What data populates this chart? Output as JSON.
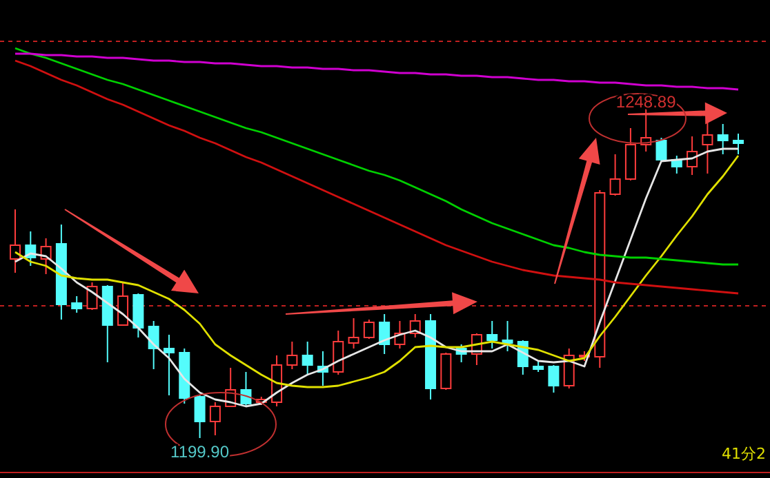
{
  "chart_data": {
    "type": "candlestick",
    "categories": [
      null,
      null,
      null,
      null,
      null,
      null,
      null,
      null,
      null,
      null,
      null,
      null,
      null,
      null,
      null,
      null,
      null,
      null,
      null,
      null,
      null,
      null,
      null,
      null,
      null,
      null,
      null,
      null,
      null,
      null,
      null,
      null,
      null,
      null,
      null,
      null,
      null,
      null,
      null,
      null,
      null,
      null,
      null,
      null,
      null,
      null,
      null,
      null
    ],
    "ohlc": [
      [
        1225.9,
        1233.1,
        1223.9,
        1227.9
      ],
      [
        1227.9,
        1229.9,
        1224.9,
        1226.1
      ],
      [
        1225.9,
        1228.9,
        1223.7,
        1227.7
      ],
      [
        1228.1,
        1230.9,
        1217.1,
        1219.3
      ],
      [
        1219.5,
        1220.5,
        1218.1,
        1218.7
      ],
      [
        1218.7,
        1222.5,
        1218.5,
        1221.9
      ],
      [
        1221.9,
        1222.1,
        1210.9,
        1216.3
      ],
      [
        1216.3,
        1222.5,
        1216.3,
        1220.5
      ],
      [
        1220.7,
        1220.9,
        1214.5,
        1215.9
      ],
      [
        1216.1,
        1216.9,
        1209.9,
        1212.9
      ],
      [
        1212.9,
        1214.9,
        1206.1,
        1212.3
      ],
      [
        1212.3,
        1212.9,
        1204.9,
        1205.7
      ],
      [
        1205.9,
        1206.1,
        1199.9,
        1202.3
      ],
      [
        1202.3,
        1205.1,
        1200.3,
        1204.5
      ],
      [
        1204.5,
        1210.1,
        1204.5,
        1206.9
      ],
      [
        1206.9,
        1209.5,
        1204.5,
        1204.9
      ],
      [
        1205.1,
        1205.9,
        1204.7,
        1205.5
      ],
      [
        1205.1,
        1211.9,
        1204.5,
        1210.5
      ],
      [
        1210.5,
        1213.9,
        1209.9,
        1211.9
      ],
      [
        1211.9,
        1213.9,
        1209.1,
        1210.5
      ],
      [
        1210.3,
        1212.5,
        1207.5,
        1209.5
      ],
      [
        1209.5,
        1215.5,
        1209.1,
        1213.9
      ],
      [
        1213.7,
        1217.3,
        1212.9,
        1214.5
      ],
      [
        1214.5,
        1217.1,
        1214.3,
        1216.7
      ],
      [
        1216.7,
        1217.9,
        1212.1,
        1213.5
      ],
      [
        1213.5,
        1216.9,
        1212.9,
        1215.1
      ],
      [
        1215.1,
        1217.9,
        1214.5,
        1216.9
      ],
      [
        1216.9,
        1217.9,
        1205.5,
        1207.1
      ],
      [
        1207.1,
        1212.3,
        1206.9,
        1212.1
      ],
      [
        1212.9,
        1213.5,
        1210.9,
        1212.1
      ],
      [
        1212.1,
        1215.1,
        1210.5,
        1214.9
      ],
      [
        1214.9,
        1216.9,
        1212.9,
        1214.1
      ],
      [
        1214.1,
        1216.9,
        1212.5,
        1213.7
      ],
      [
        1213.9,
        1214.1,
        1209.1,
        1210.3
      ],
      [
        1210.3,
        1211.1,
        1209.5,
        1209.9
      ],
      [
        1210.3,
        1210.5,
        1206.5,
        1207.5
      ],
      [
        1207.5,
        1212.9,
        1207.1,
        1211.9
      ],
      [
        1211.7,
        1212.5,
        1211.1,
        1211.9
      ],
      [
        1211.7,
        1235.9,
        1210.1,
        1235.5
      ],
      [
        1235.3,
        1241.1,
        1235.1,
        1237.5
      ],
      [
        1237.5,
        1244.9,
        1237.3,
        1242.5
      ],
      [
        1242.5,
        1248.89,
        1241.5,
        1243.5
      ],
      [
        1243.1,
        1243.5,
        1240.1,
        1240.3
      ],
      [
        1240.3,
        1240.9,
        1238.3,
        1239.3
      ],
      [
        1239.3,
        1243.7,
        1238.1,
        1241.5
      ],
      [
        1242.5,
        1245.7,
        1238.3,
        1243.9
      ],
      [
        1243.9,
        1245.5,
        1241.1,
        1243.1
      ],
      [
        1243.1,
        1244.1,
        1241.1,
        1242.7
      ]
    ],
    "colors": [
      "#ff3c3c",
      "#54fcfc",
      "#ff3c3c",
      "#54fcfc",
      "#54fcfc",
      "#ff3c3c",
      "#54fcfc",
      "#ff3c3c",
      "#54fcfc",
      "#54fcfc",
      "#54fcfc",
      "#54fcfc",
      "#54fcfc",
      "#ff3c3c",
      "#ff3c3c",
      "#54fcfc",
      "#ff3c3c",
      "#ff3c3c",
      "#ff3c3c",
      "#54fcfc",
      "#54fcfc",
      "#ff3c3c",
      "#ff3c3c",
      "#ff3c3c",
      "#54fcfc",
      "#ff3c3c",
      "#ff3c3c",
      "#54fcfc",
      "#ff3c3c",
      "#54fcfc",
      "#ff3c3c",
      "#54fcfc",
      "#54fcfc",
      "#54fcfc",
      "#54fcfc",
      "#54fcfc",
      "#ff3c3c",
      "#ff3c3c",
      "#ff3c3c",
      "#ff3c3c",
      "#ff3c3c",
      "#ff3c3c",
      "#54fcfc",
      "#54fcfc",
      "#ff3c3c",
      "#ff3c3c",
      "#54fcfc",
      "#54fcfc"
    ],
    "series": [
      {
        "type": "line",
        "color": "#e6e6e6",
        "values": [
          1225.5,
          1226.7,
          1226.3,
          1224.5,
          1222.5,
          1221.1,
          1219.5,
          1217.9,
          1215.9,
          1213.5,
          1211.5,
          1208.5,
          1206.5,
          1205.5,
          1205.1,
          1204.5,
          1204.9,
          1206.5,
          1207.9,
          1209.1,
          1209.9,
          1211.1,
          1212.1,
          1213.1,
          1214.1,
          1214.9,
          1215.5,
          1214.5,
          1213.1,
          1212.5,
          1212.5,
          1212.5,
          1213.5,
          1212.3,
          1211.1,
          1210.9,
          1211.1,
          1210.3,
          1216.7,
          1222.7,
          1228.7,
          1234.7,
          1240.1,
          1240.3,
          1240.5,
          1241.5,
          1241.9,
          1241.9
        ]
      },
      {
        "type": "line",
        "color": "#e0e000",
        "values": [
          1226.9,
          1225.5,
          1224.9,
          1223.5,
          1223.1,
          1222.9,
          1222.9,
          1222.5,
          1222.1,
          1221.1,
          1220.1,
          1218.5,
          1216.5,
          1213.5,
          1211.9,
          1210.5,
          1209.1,
          1207.9,
          1207.5,
          1207.3,
          1207.3,
          1207.5,
          1208.1,
          1208.7,
          1209.5,
          1211.1,
          1213.1,
          1213.3,
          1213.1,
          1213.1,
          1213.5,
          1213.9,
          1213.5,
          1213.1,
          1212.7,
          1211.9,
          1211.1,
          1211.5,
          1214.7,
          1217.5,
          1220.5,
          1223.5,
          1226.3,
          1229.3,
          1232.1,
          1235.3,
          1237.9,
          1240.9
        ]
      },
      {
        "type": "line",
        "color": "#00d000",
        "values": [
          1256.5,
          1255.7,
          1255.1,
          1254.3,
          1253.5,
          1252.7,
          1251.9,
          1251.3,
          1250.5,
          1249.7,
          1248.9,
          1248.1,
          1247.3,
          1246.5,
          1245.7,
          1244.9,
          1244.3,
          1243.5,
          1242.7,
          1241.9,
          1241.1,
          1240.3,
          1239.5,
          1238.7,
          1238.1,
          1237.3,
          1236.3,
          1235.3,
          1234.3,
          1233.1,
          1232.1,
          1231.1,
          1230.3,
          1229.5,
          1228.7,
          1227.9,
          1227.5,
          1226.9,
          1226.5,
          1226.3,
          1226.1,
          1226.1,
          1225.9,
          1225.7,
          1225.5,
          1225.3,
          1225.1,
          1225.1
        ]
      },
      {
        "type": "line",
        "color": "#d01010",
        "values": [
          1254.7,
          1253.9,
          1252.9,
          1251.9,
          1251.1,
          1250.1,
          1249.1,
          1248.3,
          1247.3,
          1246.3,
          1245.3,
          1244.5,
          1243.5,
          1242.7,
          1241.7,
          1240.7,
          1239.9,
          1238.9,
          1237.9,
          1236.9,
          1235.9,
          1234.9,
          1233.9,
          1232.9,
          1231.9,
          1230.9,
          1229.9,
          1228.9,
          1227.9,
          1227.1,
          1226.3,
          1225.5,
          1224.9,
          1224.3,
          1223.9,
          1223.5,
          1223.3,
          1223.1,
          1222.9,
          1222.5,
          1222.3,
          1222.1,
          1221.9,
          1221.7,
          1221.5,
          1221.3,
          1221.1,
          1220.9
        ]
      },
      {
        "type": "line",
        "color": "#d000d0",
        "values": [
          1255.7,
          1255.7,
          1255.5,
          1255.5,
          1255.3,
          1255.3,
          1255.1,
          1255.1,
          1254.9,
          1254.7,
          1254.7,
          1254.5,
          1254.5,
          1254.3,
          1254.3,
          1254.1,
          1253.9,
          1253.9,
          1253.7,
          1253.7,
          1253.5,
          1253.5,
          1253.3,
          1253.3,
          1253.1,
          1252.9,
          1252.9,
          1252.7,
          1252.7,
          1252.5,
          1252.5,
          1252.3,
          1252.3,
          1252.1,
          1251.9,
          1251.9,
          1251.7,
          1251.7,
          1251.5,
          1251.5,
          1251.3,
          1251.1,
          1251.1,
          1250.9,
          1250.9,
          1250.7,
          1250.7,
          1250.5
        ]
      }
    ],
    "ref_lines": [
      {
        "axis": "y",
        "value": 1257.5,
        "color": "#c02020",
        "line_style": "dashed"
      },
      {
        "axis": "y",
        "value": 1219.1,
        "color": "#c02020",
        "line_style": "dashed"
      }
    ],
    "annotations": [
      {
        "text": "1199.90",
        "y": 1199.9
      },
      {
        "text": "1248.89",
        "y": 1248.89
      },
      "41分2"
    ],
    "ylim": [
      1194.9,
      1263.5
    ],
    "grid": false
  }
}
